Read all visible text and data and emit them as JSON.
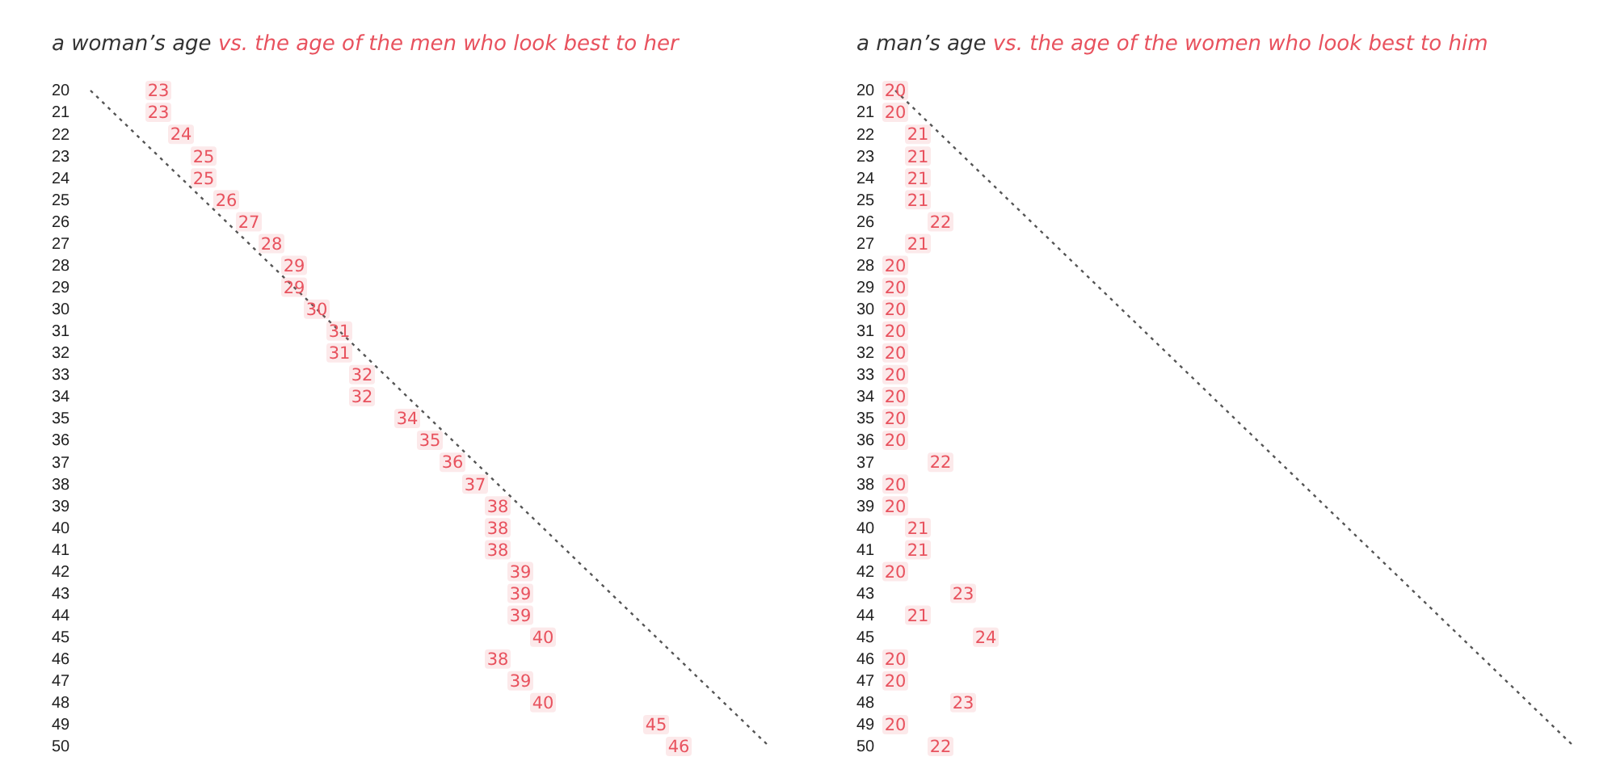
{
  "chart_data": [
    {
      "type": "scatter",
      "orientation": "horizontal",
      "ylabel": "a woman’s age",
      "xlabel": "vs. the age of the men who look best to her",
      "categories": [
        "20",
        "21",
        "22",
        "23",
        "24",
        "25",
        "26",
        "27",
        "28",
        "29",
        "30",
        "31",
        "32",
        "33",
        "34",
        "35",
        "36",
        "37",
        "38",
        "39",
        "40",
        "41",
        "42",
        "43",
        "44",
        "45",
        "46",
        "47",
        "48",
        "49",
        "50"
      ],
      "tick_labels": "y",
      "series": [
        {
          "type": "line",
          "color": "#555555",
          "line_style": "dotted",
          "values": [
            20,
            21,
            22,
            23,
            24,
            25,
            26,
            27,
            28,
            29,
            30,
            31,
            32,
            33,
            34,
            35,
            36,
            37,
            38,
            39,
            40,
            41,
            42,
            43,
            44,
            45,
            46,
            47,
            48,
            49,
            50
          ]
        },
        {
          "color": "#e8525e",
          "marker": "square",
          "values": [
            23,
            23,
            24,
            25,
            25,
            26,
            27,
            28,
            29,
            29,
            30,
            31,
            31,
            32,
            32,
            34,
            35,
            36,
            37,
            38,
            38,
            38,
            39,
            39,
            39,
            40,
            38,
            39,
            40,
            45,
            46
          ],
          "value_labels": [
            "23",
            "23",
            "24",
            "25",
            "25",
            "26",
            "27",
            "28",
            "29",
            "29",
            "30",
            "31",
            "31",
            "32",
            "32",
            "34",
            "35",
            "36",
            "37",
            "38",
            "38",
            "38",
            "39",
            "39",
            "39",
            "40",
            "38",
            "39",
            "40",
            "45",
            "46"
          ]
        }
      ]
    },
    {
      "type": "scatter",
      "orientation": "horizontal",
      "ylabel": "a man’s age",
      "xlabel": "vs. the age of the women who look best to him",
      "categories": [
        "20",
        "21",
        "22",
        "23",
        "24",
        "25",
        "26",
        "27",
        "28",
        "29",
        "30",
        "31",
        "32",
        "33",
        "34",
        "35",
        "36",
        "37",
        "38",
        "39",
        "40",
        "41",
        "42",
        "43",
        "44",
        "45",
        "46",
        "47",
        "48",
        "49",
        "50"
      ],
      "tick_labels": "y",
      "series": [
        {
          "type": "line",
          "color": "#555555",
          "line_style": "dotted",
          "values": [
            20,
            21,
            22,
            23,
            24,
            25,
            26,
            27,
            28,
            29,
            30,
            31,
            32,
            33,
            34,
            35,
            36,
            37,
            38,
            39,
            40,
            41,
            42,
            43,
            44,
            45,
            46,
            47,
            48,
            49,
            50
          ]
        },
        {
          "color": "#e8525e",
          "marker": "square",
          "values": [
            20,
            20,
            21,
            21,
            21,
            21,
            22,
            21,
            20,
            20,
            20,
            20,
            20,
            20,
            20,
            20,
            20,
            22,
            20,
            20,
            21,
            21,
            20,
            23,
            21,
            24,
            20,
            20,
            23,
            20,
            22
          ],
          "value_labels": [
            "20",
            "20",
            "21",
            "21",
            "21",
            "21",
            "22",
            "21",
            "20",
            "20",
            "20",
            "20",
            "20",
            "20",
            "20",
            "20",
            "20",
            "22",
            "20",
            "20",
            "21",
            "21",
            "20",
            "23",
            "21",
            "24",
            "20",
            "20",
            "23",
            "20",
            "22"
          ]
        }
      ]
    }
  ]
}
